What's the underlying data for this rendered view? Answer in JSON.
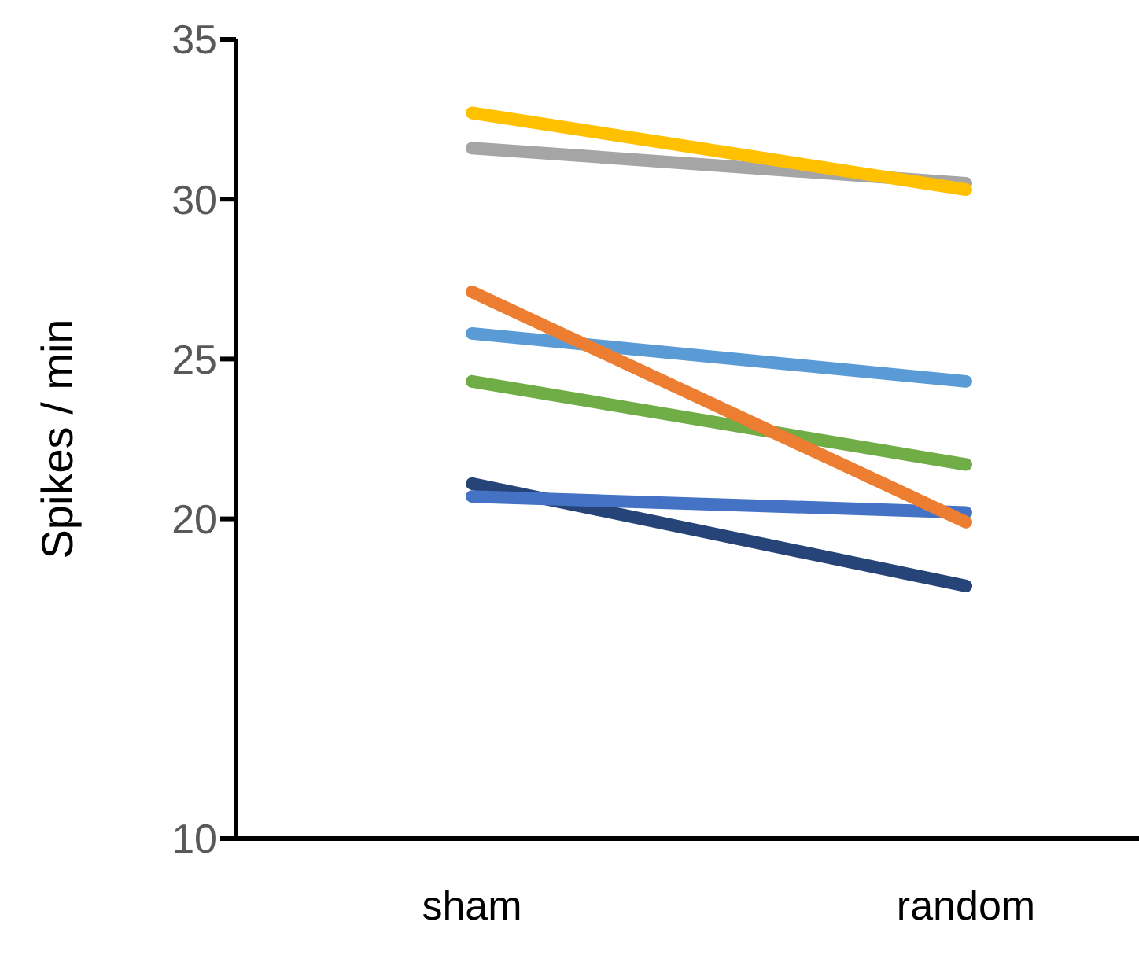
{
  "chart_data": {
    "type": "line",
    "ylabel": "Spikes / min",
    "categories": [
      "sham",
      "random"
    ],
    "series": [
      {
        "color": "#264478",
        "values": [
          21.1,
          17.9
        ]
      },
      {
        "color": "#4472c4",
        "values": [
          20.7,
          20.2
        ]
      },
      {
        "color": "#70ad47",
        "values": [
          24.3,
          21.7
        ]
      },
      {
        "color": "#5b9bd5",
        "values": [
          25.8,
          24.3
        ]
      },
      {
        "color": "#ed7d31",
        "values": [
          27.1,
          19.9
        ]
      },
      {
        "color": "#a5a5a5",
        "values": [
          31.6,
          30.5
        ]
      },
      {
        "color": "#ffc000",
        "values": [
          32.7,
          30.3
        ]
      }
    ],
    "ylim": [
      10,
      35
    ],
    "yticks": [
      10,
      20,
      25,
      30,
      35
    ],
    "grid": false,
    "legend": false,
    "marker": "none",
    "line_style": "solid"
  }
}
